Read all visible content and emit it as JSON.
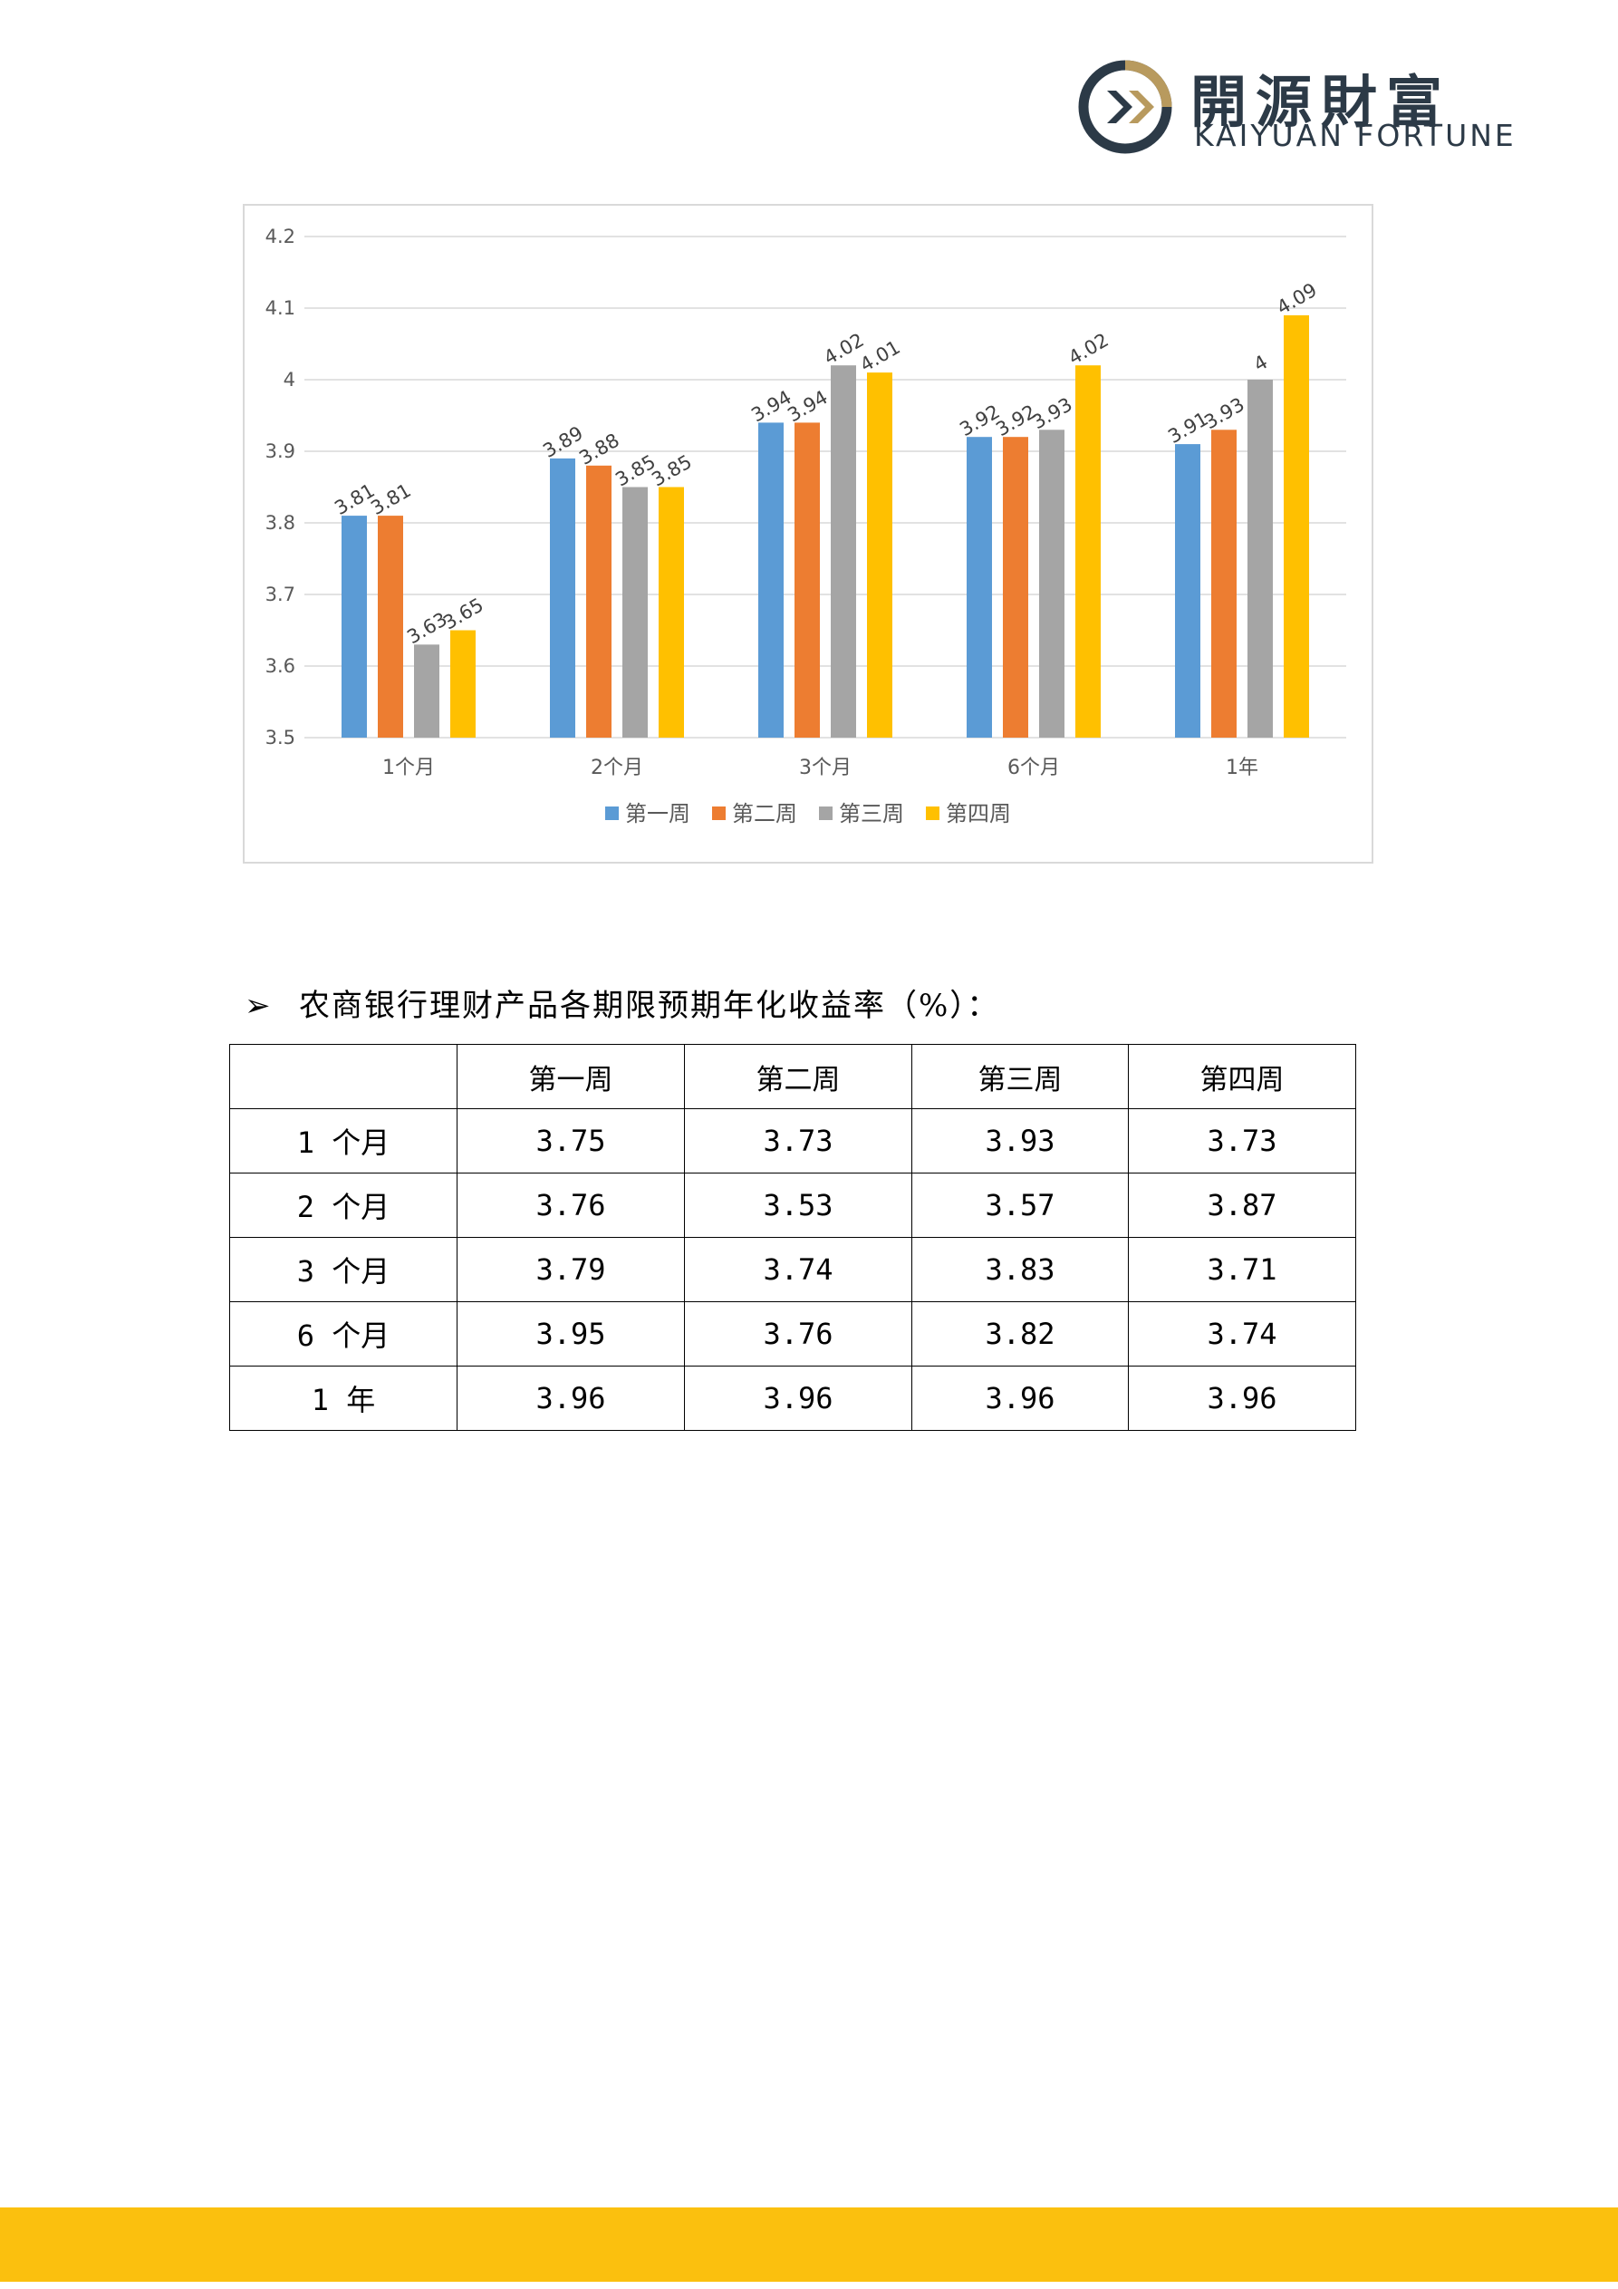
{
  "header": {
    "logo_cn": "開源財富",
    "logo_en": "KAIYUAN FORTUNE",
    "colors": {
      "gold": "#b89a5e",
      "navy": "#2c3a47"
    }
  },
  "chart_data": {
    "type": "bar",
    "categories": [
      "1个月",
      "2个月",
      "3个月",
      "6个月",
      "1年"
    ],
    "series": [
      {
        "name": "第一周",
        "color": "#5b9bd5",
        "values": [
          3.81,
          3.89,
          3.94,
          3.92,
          3.91
        ]
      },
      {
        "name": "第二周",
        "color": "#ed7d31",
        "values": [
          3.81,
          3.88,
          3.94,
          3.92,
          3.93
        ]
      },
      {
        "name": "第三周",
        "color": "#a5a5a5",
        "values": [
          3.63,
          3.85,
          4.02,
          3.93,
          4
        ]
      },
      {
        "name": "第四周",
        "color": "#ffc000",
        "values": [
          3.65,
          3.85,
          4.01,
          4.02,
          4.09
        ]
      }
    ],
    "ylim": [
      3.5,
      4.2
    ],
    "yticks": [
      "3.5",
      "3.6",
      "3.7",
      "3.8",
      "3.9",
      "4",
      "4.1",
      "4.2"
    ],
    "grid": true,
    "legend": "bottom",
    "data_labels": true
  },
  "section": {
    "arrow": "➢",
    "title": "农商银行理财产品各期限预期年化收益率（%）："
  },
  "table": {
    "headers": [
      "",
      "第一周",
      "第二周",
      "第三周",
      "第四周"
    ],
    "rows": [
      [
        "1 个月",
        "3.75",
        "3.73",
        "3.93",
        "3.73"
      ],
      [
        "2 个月",
        "3.76",
        "3.53",
        "3.57",
        "3.87"
      ],
      [
        "3 个月",
        "3.79",
        "3.74",
        "3.83",
        "3.71"
      ],
      [
        "6 个月",
        "3.95",
        "3.76",
        "3.82",
        "3.74"
      ],
      [
        "1 年",
        "3.96",
        "3.96",
        "3.96",
        "3.96"
      ]
    ]
  },
  "footer": {
    "color": "#fbc00e"
  }
}
